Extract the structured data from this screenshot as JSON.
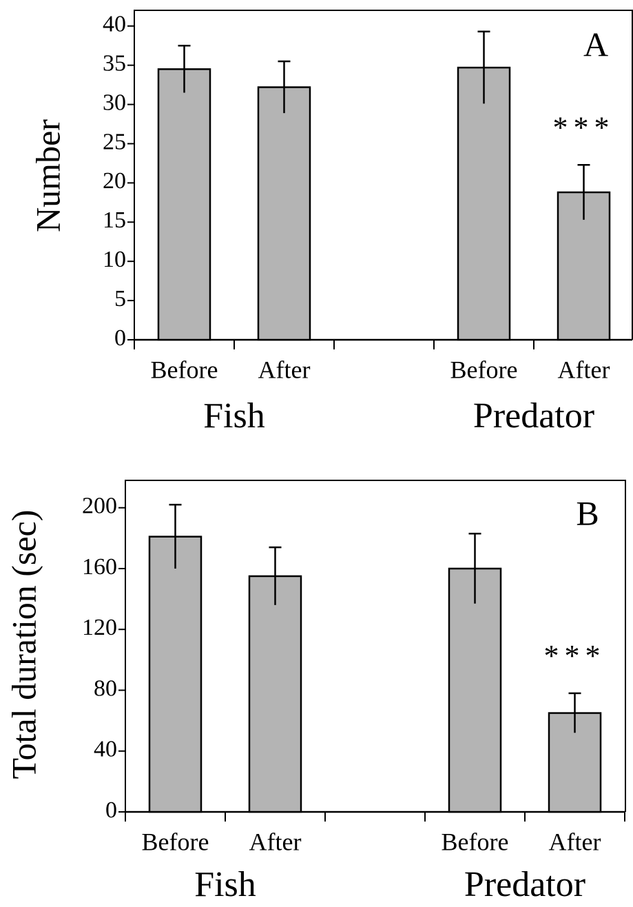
{
  "chart_data": [
    {
      "type": "bar",
      "panel": "A",
      "ylabel": "Number",
      "categories": [
        "Before",
        "After",
        null,
        "Before",
        "After"
      ],
      "groups": [
        "Fish",
        "Predator"
      ],
      "values": [
        34.5,
        32.2,
        null,
        34.7,
        18.8
      ],
      "errors": [
        3.0,
        3.3,
        null,
        4.6,
        3.5
      ],
      "annotation": "***",
      "color": "#b4b4b4",
      "ylim": [
        0,
        42
      ],
      "yticks": [
        0,
        5,
        10,
        15,
        20,
        25,
        30,
        35,
        40
      ]
    },
    {
      "type": "bar",
      "panel": "B",
      "ylabel": "Total duration (sec)",
      "categories": [
        "Before",
        "After",
        null,
        "Before",
        "After"
      ],
      "groups": [
        "Fish",
        "Predator"
      ],
      "values": [
        181,
        155,
        null,
        160,
        65
      ],
      "errors": [
        21,
        19,
        null,
        23,
        13
      ],
      "annotation": "***",
      "color": "#b4b4b4",
      "ylim": [
        0,
        218
      ],
      "yticks": [
        0,
        40,
        80,
        120,
        160,
        200
      ]
    }
  ]
}
